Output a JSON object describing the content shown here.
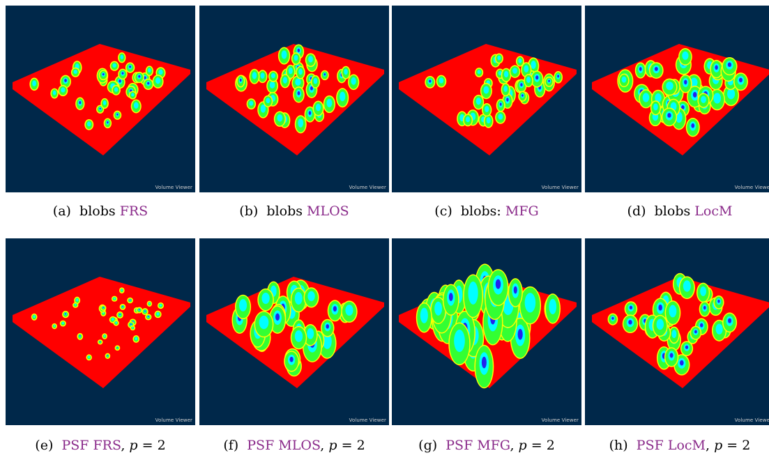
{
  "figure": {
    "watermark": "Volume Viewer",
    "colors": {
      "background": "#00284a",
      "slab": "#ff0000",
      "blob_outer": "#ffff00",
      "blob_mid": "#33ff33",
      "blob_inner": "#00ffff",
      "blob_core": "#2222ee",
      "method": "#8a2a8a"
    },
    "panels": [
      {
        "label": "(a)",
        "prefix": "blobs",
        "method": "FRS",
        "suffix": "",
        "p_var": "",
        "p_eq": ""
      },
      {
        "label": "(b)",
        "prefix": "blobs",
        "method": "MLOS",
        "suffix": "",
        "p_var": "",
        "p_eq": ""
      },
      {
        "label": "(c)",
        "prefix": "blobs:",
        "method": "MFG",
        "suffix": "",
        "p_var": "",
        "p_eq": ""
      },
      {
        "label": "(d)",
        "prefix": "blobs",
        "method": "LocM",
        "suffix": "",
        "p_var": "",
        "p_eq": ""
      },
      {
        "label": "(e)",
        "prefix": "PSF",
        "method": "FRS",
        "suffix": ",",
        "p_var": "p",
        "p_eq": "= 2"
      },
      {
        "label": "(f)",
        "prefix": "PSF",
        "method": "MLOS",
        "suffix": ",",
        "p_var": "p",
        "p_eq": "= 2"
      },
      {
        "label": "(g)",
        "prefix": "PSF",
        "method": "MFG",
        "suffix": ",",
        "p_var": "p",
        "p_eq": "= 2"
      },
      {
        "label": "(h)",
        "prefix": "PSF",
        "method": "LocM",
        "suffix": ",",
        "p_var": "p",
        "p_eq": "= 2"
      }
    ]
  }
}
